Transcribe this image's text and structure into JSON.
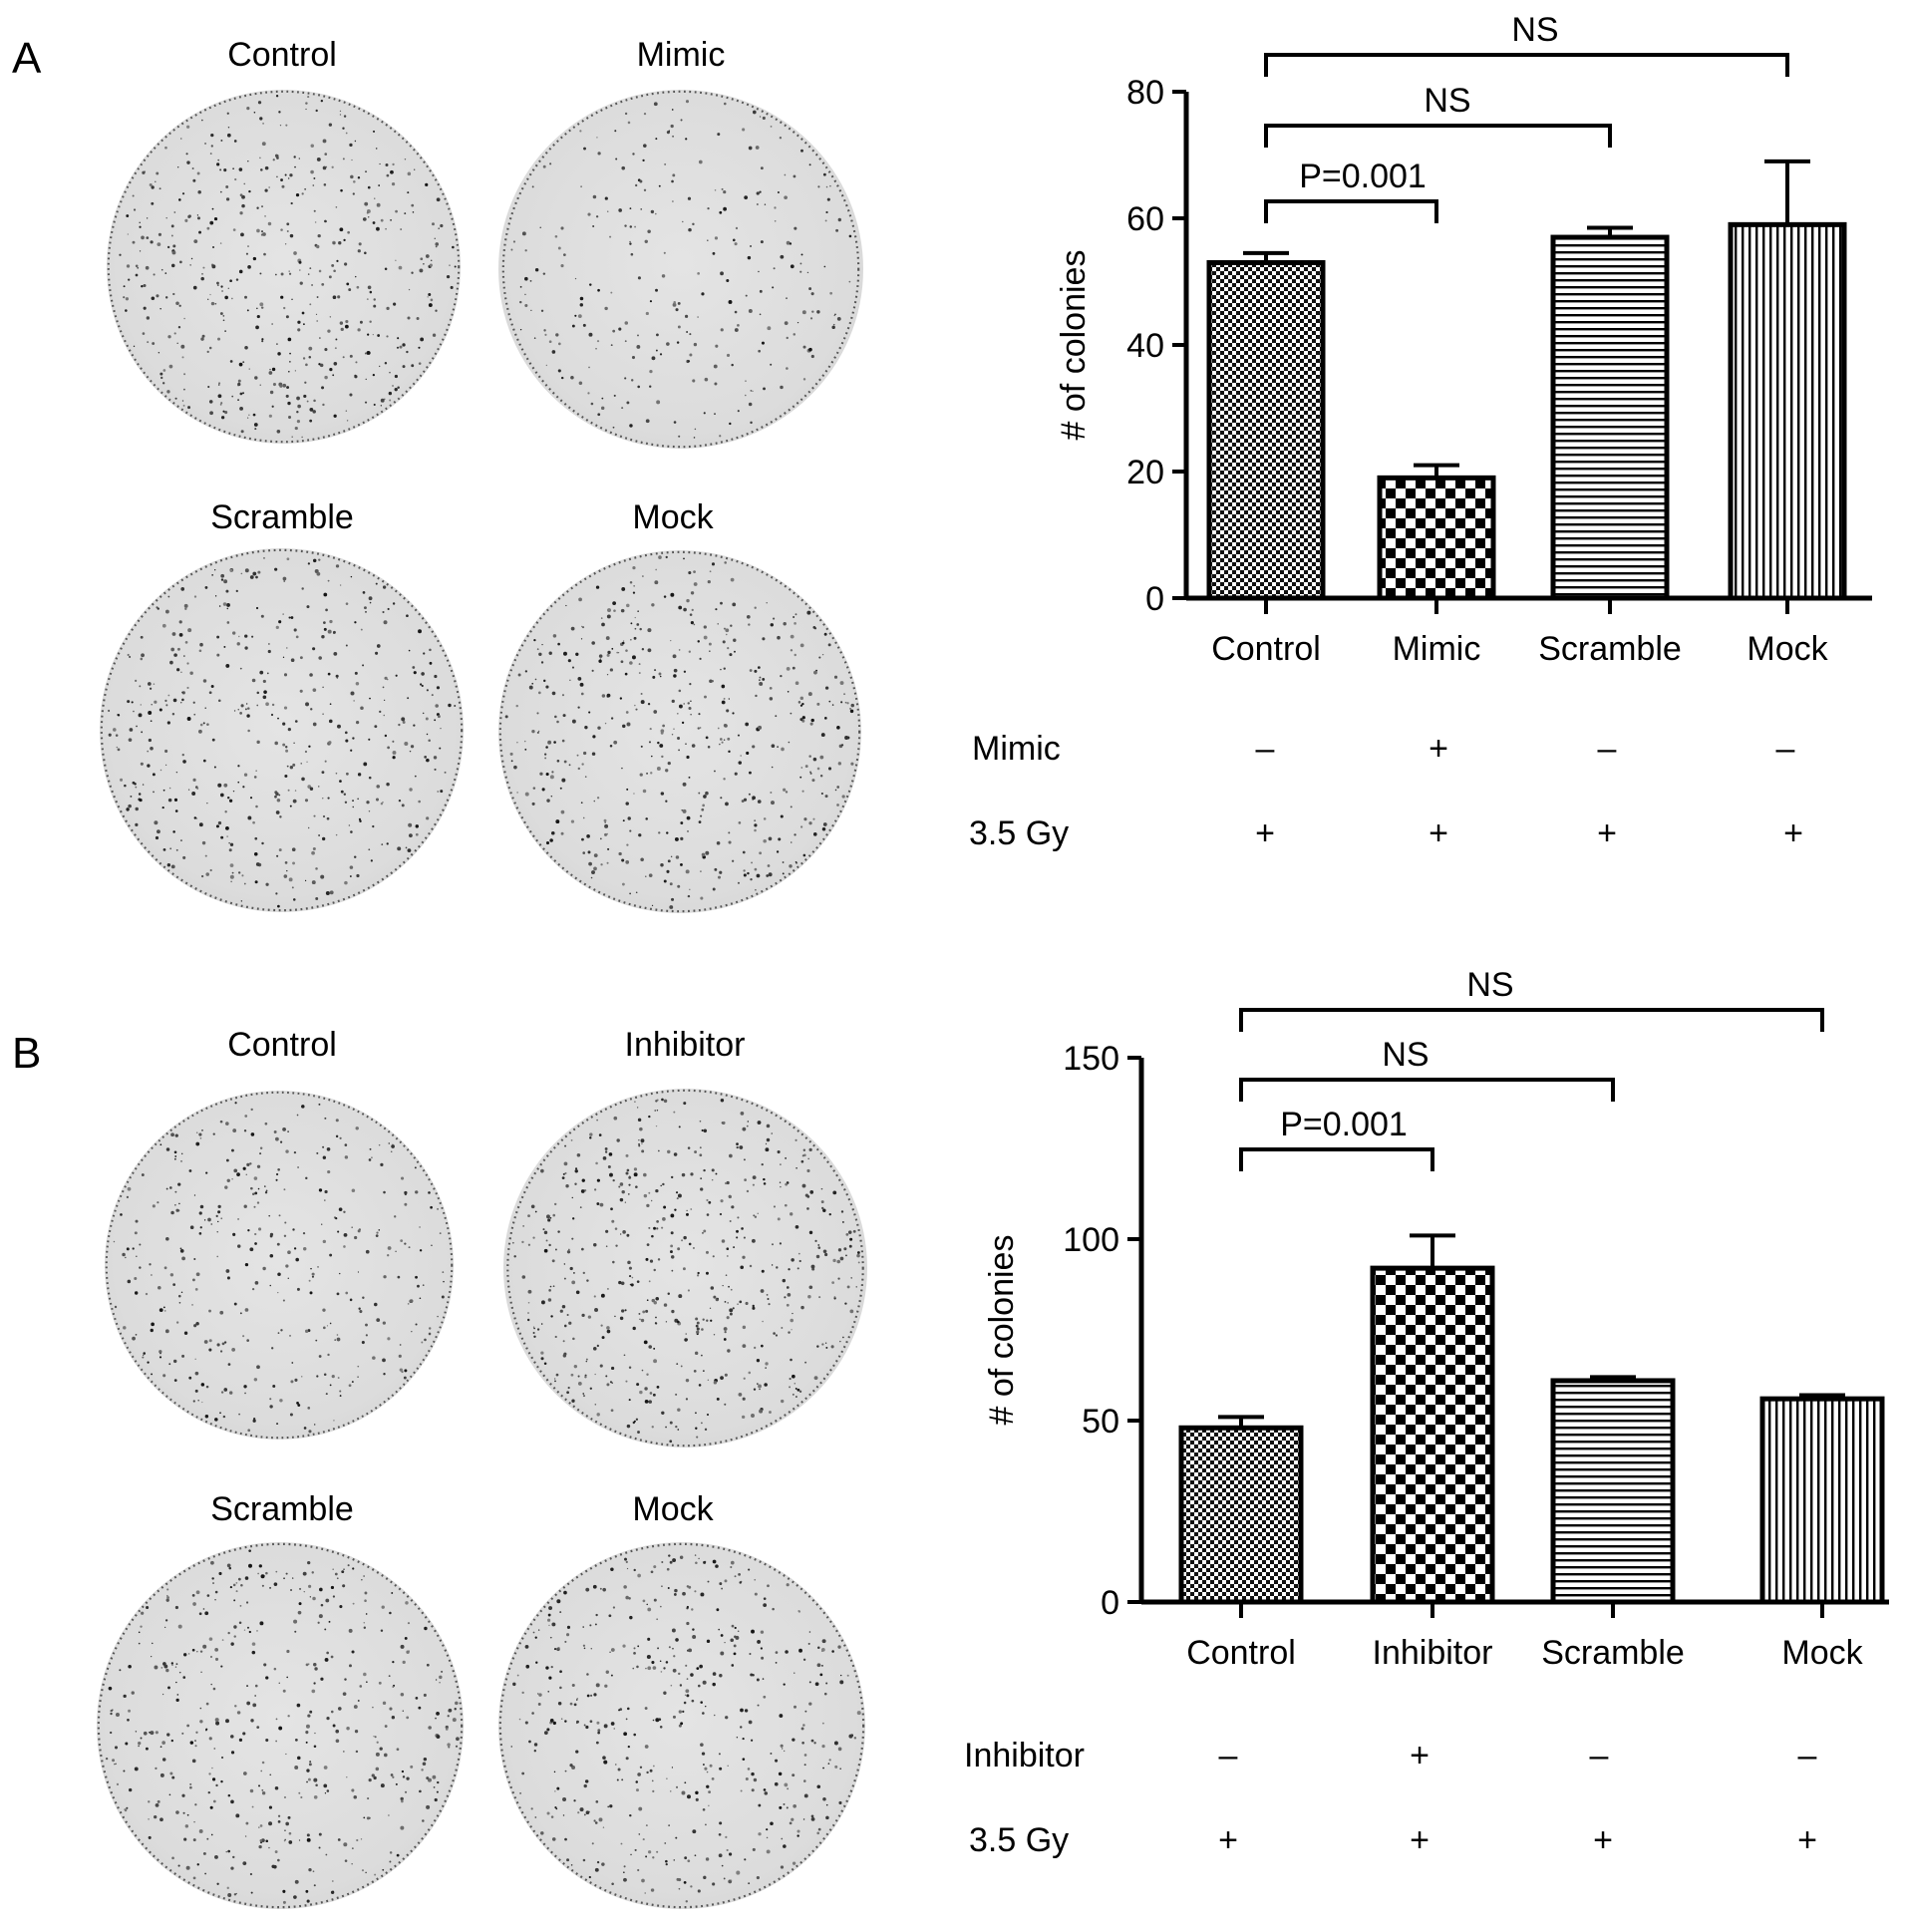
{
  "panels": [
    {
      "letter": "A",
      "dish_labels": [
        "Control",
        "Mimic",
        "Scramble",
        "Mock"
      ],
      "dish_colony_density": [
        1.0,
        0.55,
        0.95,
        1.0
      ],
      "rows": [
        {
          "label": "Mimic",
          "signs": [
            "–",
            "+",
            "–",
            "–"
          ]
        },
        {
          "label": "3.5 Gy",
          "signs": [
            "+",
            "+",
            "+",
            "+"
          ]
        }
      ]
    },
    {
      "letter": "B",
      "dish_labels": [
        "Control",
        "Inhibitor",
        "Scramble",
        "Mock"
      ],
      "dish_colony_density": [
        0.75,
        1.1,
        0.95,
        0.95
      ],
      "rows": [
        {
          "label": "Inhibitor",
          "signs": [
            "–",
            "+",
            "–",
            "–"
          ]
        },
        {
          "label": "3.5 Gy",
          "signs": [
            "+",
            "+",
            "+",
            "+"
          ]
        }
      ]
    }
  ],
  "chart_data": [
    {
      "type": "bar",
      "categories": [
        "Control",
        "Mimic",
        "Scramble",
        "Mock"
      ],
      "values": [
        53,
        19,
        57,
        59
      ],
      "errors": [
        1.5,
        2,
        1.5,
        10
      ],
      "patterns": [
        "fine-check",
        "coarse-check",
        "horizontal",
        "vertical"
      ],
      "ylabel": "# of colonies",
      "ylim": [
        0,
        80
      ],
      "yticks": [
        "0",
        "20",
        "40",
        "60",
        "80"
      ],
      "comparisons": [
        {
          "from": 0,
          "to": 1,
          "label": "P=0.001"
        },
        {
          "from": 0,
          "to": 2,
          "label": "NS"
        },
        {
          "from": 0,
          "to": 3,
          "label": "NS"
        }
      ]
    },
    {
      "type": "bar",
      "categories": [
        "Control",
        "Inhibitor",
        "Scramble",
        "Mock"
      ],
      "values": [
        48,
        92,
        61,
        56
      ],
      "errors": [
        3,
        9,
        1,
        1
      ],
      "patterns": [
        "fine-check",
        "coarse-check",
        "horizontal",
        "vertical"
      ],
      "ylabel": "# of colonies",
      "ylim": [
        0,
        150
      ],
      "yticks": [
        "0",
        "50",
        "100",
        "150"
      ],
      "comparisons": [
        {
          "from": 0,
          "to": 1,
          "label": "P=0.001"
        },
        {
          "from": 0,
          "to": 2,
          "label": "NS"
        },
        {
          "from": 0,
          "to": 3,
          "label": "NS"
        }
      ]
    }
  ]
}
